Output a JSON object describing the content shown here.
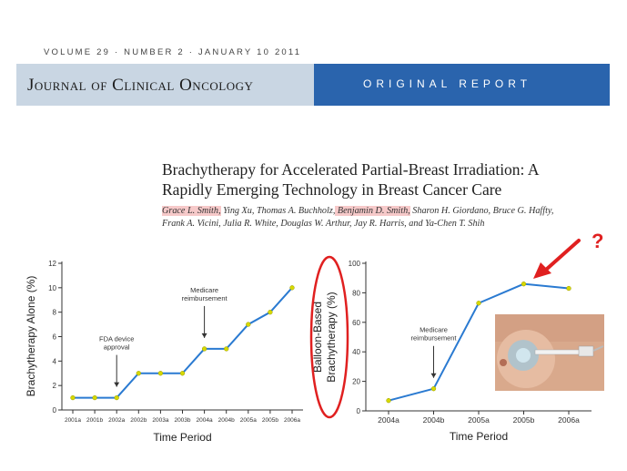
{
  "header": {
    "issue_line": "VOLUME 29 · NUMBER 2 · JANUARY 10 2011",
    "journal_name": "Journal of Clinical Oncology",
    "report_type": "ORIGINAL REPORT"
  },
  "article": {
    "title_line1": "Brachytherapy for Accelerated Partial-Breast Irradiation: A",
    "title_line2": "Rapidly Emerging Technology in Breast Cancer Care",
    "authors_part1": "Grace L. Smith,",
    "authors_part2": " Ying Xu, Thomas A. Buchholz,",
    "authors_part3": " Benjamin D. Smith,",
    "authors_part4": " Sharon H. Giordano, Bruce G. Haffty,",
    "authors_line2": "Frank A. Vicini, Julia R. White, Douglas W. Arthur, Jay R. Harris, and Ya-Chen T. Shih",
    "highlight_color": "#f6c9c9"
  },
  "question_mark": "?",
  "chart_data": [
    {
      "type": "line",
      "xlabel": "Time Period",
      "ylabel": "Brachytherapy Alone (%)",
      "categories": [
        "2001a",
        "2001b",
        "2002a",
        "2002b",
        "2003a",
        "2003b",
        "2004a",
        "2004b",
        "2005a",
        "2005b",
        "2006a"
      ],
      "values": [
        1,
        1,
        1,
        3,
        3,
        3,
        5,
        5,
        7,
        8,
        10
      ],
      "ylim": [
        0,
        12
      ],
      "yticks": [
        0,
        2,
        4,
        6,
        8,
        10,
        12
      ],
      "grid": false,
      "line_color": "#2a7ad1",
      "marker_color": "#d6d900",
      "annotations": [
        {
          "text_lines": [
            "FDA device",
            "approval"
          ],
          "category": "2002a"
        },
        {
          "text_lines": [
            "Medicare",
            "reimbursement"
          ],
          "category": "2004a"
        }
      ]
    },
    {
      "type": "line",
      "xlabel": "Time Period",
      "ylabel_line1": "Balloon-Based",
      "ylabel_line2": "Brachytherapy (%)",
      "categories": [
        "2004a",
        "2004b",
        "2005a",
        "2005b",
        "2006a"
      ],
      "values": [
        7,
        15,
        73,
        86,
        83
      ],
      "ylim": [
        0,
        100
      ],
      "yticks": [
        0,
        20,
        40,
        60,
        80,
        100
      ],
      "grid": false,
      "line_color": "#2a7ad1",
      "marker_color": "#d6d900",
      "annotations": [
        {
          "text_lines": [
            "Medicare",
            "reimbursement"
          ],
          "category": "2004b"
        }
      ],
      "emphasis_color": "#e02020"
    }
  ]
}
